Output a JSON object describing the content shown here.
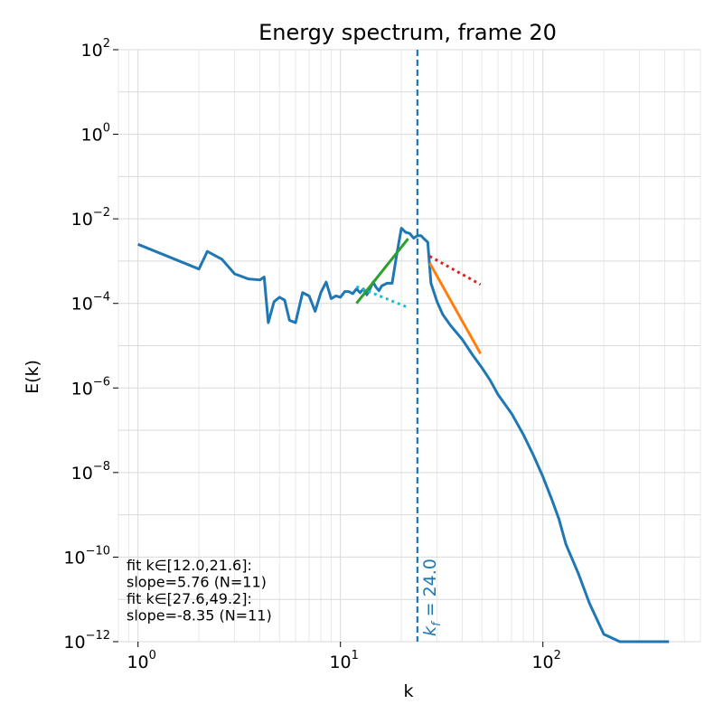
{
  "chart_data": {
    "type": "line",
    "title": "Energy spectrum, frame 20",
    "xlabel": "k",
    "ylabel": "E(k)",
    "xscale": "log",
    "yscale": "log",
    "xlim": [
      0.8,
      600
    ],
    "ylim": [
      1e-12,
      100
    ],
    "grid": true,
    "x_ticks": [
      {
        "value": 1,
        "base": "10",
        "exp": "0"
      },
      {
        "value": 10,
        "base": "10",
        "exp": "1"
      },
      {
        "value": 100,
        "base": "10",
        "exp": "2"
      }
    ],
    "y_ticks": [
      {
        "value": 100,
        "base": "10",
        "exp": "2"
      },
      {
        "value": 1,
        "base": "10",
        "exp": "0"
      },
      {
        "value": 0.01,
        "base": "10",
        "exp": "−2"
      },
      {
        "value": 0.0001,
        "base": "10",
        "exp": "−4"
      },
      {
        "value": 1e-06,
        "base": "10",
        "exp": "−6"
      },
      {
        "value": 1e-08,
        "base": "10",
        "exp": "−8"
      },
      {
        "value": 1e-10,
        "base": "10",
        "exp": "−10"
      },
      {
        "value": 1e-12,
        "base": "10",
        "exp": "−12"
      }
    ],
    "series": [
      {
        "color": "#1f77b4",
        "style": "solid",
        "x": [
          1,
          2,
          2.2,
          2.6,
          3,
          3.5,
          4,
          4.2,
          4.4,
          4.7,
          5,
          5.3,
          5.6,
          6,
          6.5,
          7,
          7.5,
          8,
          8.5,
          9,
          9.5,
          10,
          10.5,
          11,
          11.5,
          12,
          12.5,
          13,
          13.5,
          14,
          14.5,
          15,
          15.5,
          16,
          17,
          18,
          19,
          20,
          21,
          22,
          23,
          24,
          25,
          26,
          27,
          28,
          29,
          30,
          32,
          35,
          40,
          45,
          50,
          55,
          60,
          70,
          80,
          90,
          100,
          110,
          120,
          130,
          150,
          170,
          200,
          240,
          280,
          310,
          330,
          350,
          380,
          420
        ],
        "y": [
          0.0025,
          0.00065,
          0.0017,
          0.0011,
          0.0005,
          0.00038,
          0.00036,
          0.00042,
          3.5e-05,
          0.00011,
          0.00014,
          0.00012,
          4e-05,
          3.5e-05,
          0.00018,
          0.00015,
          6.5e-05,
          0.00018,
          0.00032,
          0.00013,
          0.00015,
          0.00014,
          0.00019,
          0.00019,
          0.00017,
          0.00022,
          0.00018,
          0.00022,
          0.00016,
          0.00022,
          0.00032,
          0.00024,
          0.0002,
          0.00026,
          0.0003,
          0.0003,
          0.0015,
          0.006,
          0.0048,
          0.0045,
          0.0035,
          0.004,
          0.004,
          0.0033,
          0.0028,
          0.0003,
          0.00018,
          0.00011,
          5.5e-05,
          3e-05,
          1.4e-05,
          6e-06,
          3e-06,
          1.5e-06,
          7e-07,
          2.5e-07,
          8e-08,
          2.5e-08,
          8e-09,
          2.5e-09,
          8e-10,
          2e-10,
          4e-11,
          8e-12,
          1.5e-12,
          1e-12,
          1e-12,
          1e-12,
          1e-12,
          1e-12,
          1e-12,
          1e-12
        ]
      },
      {
        "color": "#2ca02c",
        "style": "solid",
        "x": [
          12,
          21.6
        ],
        "y": [
          0.0001,
          0.0034
        ]
      },
      {
        "color": "#ff7f0e",
        "style": "solid",
        "x": [
          27.6,
          49.2
        ],
        "y": [
          0.0009,
          6.5e-06
        ]
      },
      {
        "color": "#17becf",
        "style": "dotted",
        "x": [
          12,
          21.6
        ],
        "y": [
          0.00025,
          8e-05
        ]
      },
      {
        "color": "#d62728",
        "style": "dotted",
        "x": [
          27.6,
          49.2
        ],
        "y": [
          0.0013,
          0.00028
        ]
      }
    ],
    "vline": {
      "x": 24.0,
      "color": "#1f77b4",
      "label": "k_f = 24.0",
      "label_main": "k",
      "label_sub": "f",
      "label_value": " = 24.0"
    },
    "annotations": [
      "fit k∈[12.0,21.6]:",
      "slope=5.76 (N=11)",
      "fit k∈[27.6,49.2]:",
      "slope=-8.35 (N=11)"
    ]
  }
}
